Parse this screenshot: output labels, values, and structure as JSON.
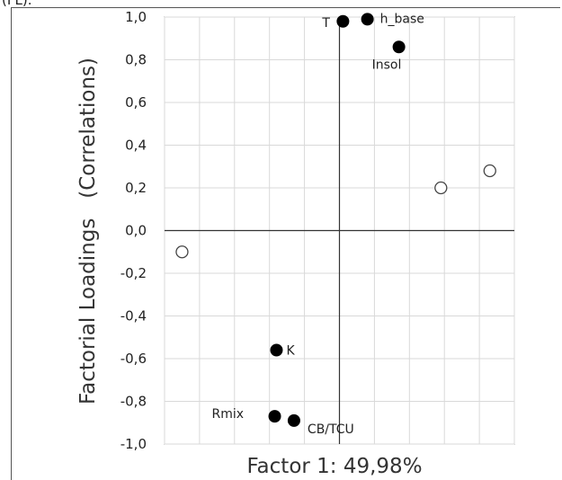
{
  "caption": "(FL).",
  "chart_data": {
    "type": "scatter",
    "xlabel": "Factor 1: 49,98%",
    "ylabel": "Factorial Loadings   (Correlations)",
    "xlim": [
      -1.0,
      1.0
    ],
    "ylim": [
      -1.0,
      1.0
    ],
    "y_ticks": [
      "1,0",
      "0,8",
      "0,6",
      "0,4",
      "0,2",
      "0,0",
      "-0,2",
      "-0,4",
      "-0,6",
      "-0,8",
      "-1,0"
    ],
    "y_tick_values": [
      1.0,
      0.8,
      0.6,
      0.4,
      0.2,
      0.0,
      -0.2,
      -0.4,
      -0.6,
      -0.8,
      -1.0
    ],
    "grid": true,
    "series": [
      {
        "marker": "filled",
        "color": "#000000",
        "points": [
          {
            "label": "T",
            "x": 0.02,
            "y": 0.98
          },
          {
            "label": "h_base",
            "x": 0.16,
            "y": 0.99
          },
          {
            "label": "Insol",
            "x": 0.34,
            "y": 0.86
          },
          {
            "label": "K",
            "x": -0.36,
            "y": -0.56
          },
          {
            "label": "Rmix",
            "x": -0.37,
            "y": -0.87
          },
          {
            "label": "CB/TCU",
            "x": -0.26,
            "y": -0.89
          }
        ]
      },
      {
        "marker": "open",
        "color": "#ffffff",
        "points": [
          {
            "label": "",
            "x": -0.9,
            "y": -0.1
          },
          {
            "label": "",
            "x": 0.58,
            "y": 0.2
          },
          {
            "label": "",
            "x": 0.86,
            "y": 0.28
          }
        ]
      }
    ]
  }
}
